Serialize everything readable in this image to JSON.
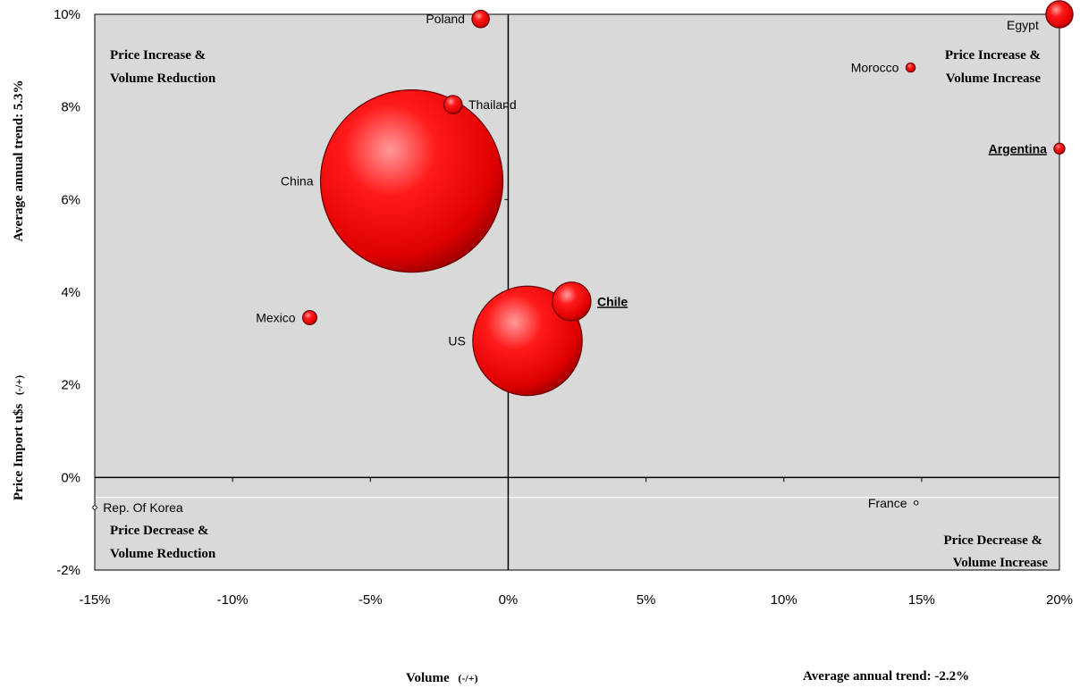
{
  "chart_data": {
    "type": "scatter",
    "subtype": "bubble",
    "xlim": [
      -15,
      20
    ],
    "ylim": [
      -2,
      10
    ],
    "x_ticks": [
      "-15%",
      "-10%",
      "-5%",
      "0%",
      "5%",
      "10%",
      "15%",
      "20%"
    ],
    "y_ticks": [
      "10%",
      "8%",
      "6%",
      "4%",
      "2%",
      "0%",
      "-2%"
    ],
    "y_axis_title": "Average annual trend:  5.3%",
    "y_axis_subtitle": "Price Import u$s",
    "y_axis_sign": "(-/+)",
    "x_axis_title": "Volume",
    "x_axis_sign": "(-/+)",
    "x_trend_label": "Average annual trend: -2.2%",
    "quadrants": {
      "top_left": [
        "Price Increase &",
        "Volume Reduction"
      ],
      "top_right": [
        "Price Increase &",
        "Volume Increase"
      ],
      "bottom_left": [
        "Price Decrease &",
        "Volume Reduction"
      ],
      "bottom_right": [
        "Price Decrease &",
        "Volume Increase"
      ]
    },
    "points": [
      {
        "label": "Poland",
        "x": -1.0,
        "y": 9.9,
        "size": 0.9,
        "emphasis": false,
        "label_side": "left"
      },
      {
        "label": "Egypt",
        "x": 20.0,
        "y": 10.0,
        "size": 2.2,
        "emphasis": false,
        "label_side": "left-below"
      },
      {
        "label": "Morocco",
        "x": 14.6,
        "y": 8.85,
        "size": 0.25,
        "emphasis": false,
        "label_side": "left"
      },
      {
        "label": "Thailand",
        "x": -2.0,
        "y": 8.05,
        "size": 1.0,
        "emphasis": false,
        "label_side": "right"
      },
      {
        "label": "Argentina",
        "x": 20.0,
        "y": 7.1,
        "size": 0.35,
        "emphasis": true,
        "label_side": "left"
      },
      {
        "label": "China",
        "x": -3.5,
        "y": 6.4,
        "size": 100,
        "emphasis": false,
        "label_side": "left"
      },
      {
        "label": "Chile",
        "x": 2.3,
        "y": 3.8,
        "size": 4.5,
        "emphasis": true,
        "label_side": "right"
      },
      {
        "label": "Mexico",
        "x": -7.2,
        "y": 3.45,
        "size": 0.6,
        "emphasis": false,
        "label_side": "left"
      },
      {
        "label": "US",
        "x": 0.7,
        "y": 2.95,
        "size": 36,
        "emphasis": false,
        "label_side": "left"
      },
      {
        "label": "Rep. Of Korea",
        "x": -15.0,
        "y": -0.65,
        "size": 0.04,
        "emphasis": false,
        "label_side": "right"
      },
      {
        "label": "France",
        "x": 14.8,
        "y": -0.55,
        "size": 0.02,
        "emphasis": false,
        "label_side": "left"
      }
    ]
  },
  "colors": {
    "plot_background": "#d9d9d9",
    "bubble_fill": "#ff0000",
    "bubble_dark": "#9a0000",
    "bubble_highlight": "#ff9a9a"
  }
}
